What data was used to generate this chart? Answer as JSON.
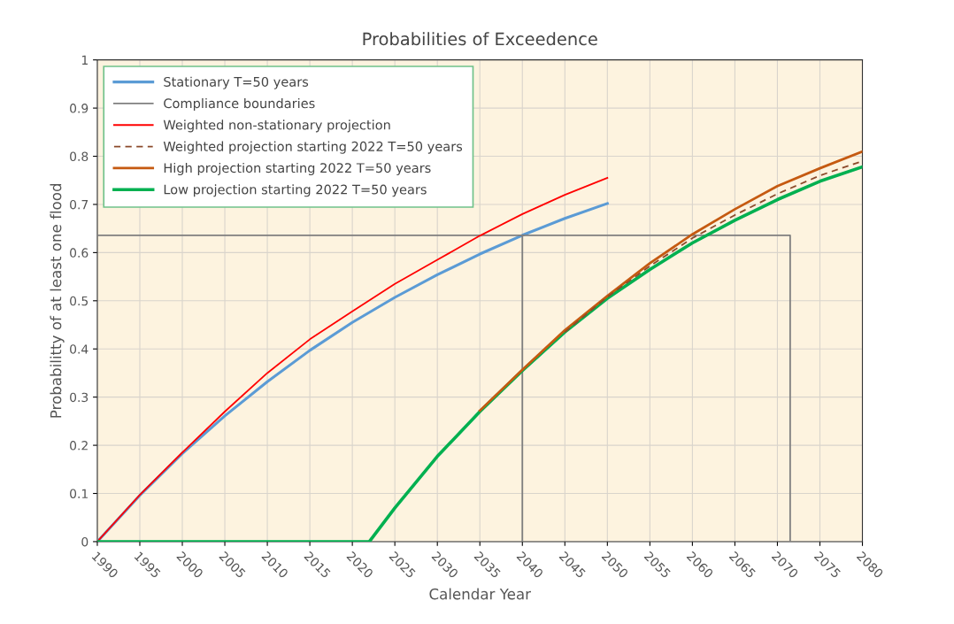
{
  "chart_data": {
    "type": "line",
    "title": "Probabilities of Exceedence",
    "xlabel": "Calendar Year",
    "ylabel": "Probabilitty of at least one flood",
    "xlim": [
      1990,
      2080
    ],
    "xticks": [
      1990,
      1995,
      2000,
      2005,
      2010,
      2015,
      2020,
      2025,
      2030,
      2035,
      2040,
      2045,
      2050,
      2055,
      2060,
      2065,
      2070,
      2075,
      2080
    ],
    "ylim": [
      0,
      1
    ],
    "yticks": [
      0,
      0.1,
      0.2,
      0.3,
      0.4,
      0.5,
      0.6,
      0.7,
      0.8,
      0.9,
      1
    ],
    "grid": true,
    "legend": "top left",
    "marker": "none",
    "series": [
      {
        "name": "Stationary T=50 years",
        "color": "#5b9bd5",
        "x": [
          1990,
          1995,
          2000,
          2005,
          2010,
          2015,
          2020,
          2025,
          2030,
          2035,
          2040,
          2045,
          2050
        ],
        "values": [
          0,
          0.096,
          0.183,
          0.261,
          0.332,
          0.397,
          0.455,
          0.507,
          0.554,
          0.597,
          0.636,
          0.671,
          0.702
        ]
      },
      {
        "name": "Compliance boundaries",
        "color": "#7f7f7f",
        "x": [
          2040,
          2040,
          1990,
          2071.5,
          2071.5
        ],
        "values": [
          0,
          0.636,
          0.636,
          0.636,
          0
        ]
      },
      {
        "name": "Weighted non-stationary projection",
        "color": "#ff0000",
        "x": [
          1990,
          1995,
          2000,
          2005,
          2010,
          2015,
          2020,
          2025,
          2030,
          2035,
          2040,
          2045,
          2050
        ],
        "values": [
          0,
          0.097,
          0.185,
          0.27,
          0.35,
          0.42,
          0.478,
          0.535,
          0.585,
          0.635,
          0.68,
          0.72,
          0.755
        ]
      },
      {
        "name": "Weighted projection starting 2022 T=50 years",
        "color": "#8b4a2b",
        "line_style": "dashed",
        "x": [
          2045,
          2050,
          2055,
          2060,
          2065,
          2070,
          2075,
          2080
        ],
        "values": [
          0.435,
          0.508,
          0.572,
          0.63,
          0.678,
          0.722,
          0.76,
          0.79
        ]
      },
      {
        "name": "High projection starting 2022 T=50 years",
        "color": "#c55a11",
        "x": [
          2035,
          2040,
          2045,
          2050,
          2055,
          2060,
          2065,
          2070,
          2075,
          2080
        ],
        "values": [
          0.272,
          0.357,
          0.439,
          0.51,
          0.578,
          0.638,
          0.69,
          0.738,
          0.775,
          0.81
        ]
      },
      {
        "name": "Low projection starting 2022 T=50 years",
        "color": "#00b050",
        "x": [
          1990,
          2000,
          2010,
          2022,
          2025,
          2030,
          2035,
          2040,
          2045,
          2050,
          2055,
          2060,
          2065,
          2070,
          2075,
          2080
        ],
        "values": [
          0,
          0,
          0,
          0,
          0.07,
          0.177,
          0.27,
          0.355,
          0.435,
          0.505,
          0.565,
          0.62,
          0.667,
          0.71,
          0.748,
          0.778
        ]
      }
    ]
  }
}
